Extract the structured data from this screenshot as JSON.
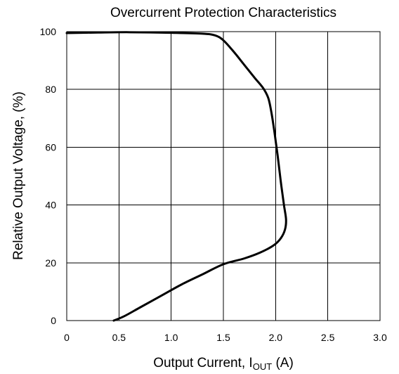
{
  "chart_data": {
    "type": "line",
    "title": "Overcurrent Protection Characteristics",
    "xlabel": {
      "main": "Output Current, I",
      "subscript": "OUT",
      "suffix": " (A)"
    },
    "ylabel": "Relative Output Voltage, (%)",
    "xlim": [
      0,
      3.0
    ],
    "ylim": [
      0,
      100
    ],
    "x_ticks": [
      "0",
      "0.5",
      "1.0",
      "1.5",
      "2.0",
      "2.5",
      "3.0"
    ],
    "x_tick_values": [
      0,
      0.5,
      1.0,
      1.5,
      2.0,
      2.5,
      3.0
    ],
    "y_ticks": [
      "0",
      "20",
      "40",
      "60",
      "80",
      "100"
    ],
    "y_tick_values": [
      0,
      20,
      40,
      60,
      80,
      100
    ],
    "x_grid_values": [
      0.5,
      1.0,
      1.5,
      2.0,
      2.5
    ],
    "y_grid_values": [
      20,
      40,
      60,
      80
    ],
    "grid": true,
    "legend": false,
    "series": [
      {
        "x": [
          0.0,
          0.3,
          0.6,
          1.0,
          1.3,
          1.42,
          1.5,
          1.6,
          1.7,
          1.8,
          1.88,
          1.93,
          1.96,
          1.99,
          2.02,
          2.05,
          2.08,
          2.1,
          2.09,
          2.05,
          1.98,
          1.85,
          1.7,
          1.5,
          1.3,
          1.1,
          0.9,
          0.7,
          0.55,
          0.45
        ],
        "y": [
          99.5,
          99.7,
          99.8,
          99.6,
          99.3,
          98.7,
          97.0,
          93.0,
          88.5,
          84.0,
          80.5,
          77.0,
          72.0,
          65.0,
          57.0,
          48.0,
          40.0,
          35.0,
          31.5,
          28.5,
          26.0,
          23.5,
          21.5,
          19.5,
          16.0,
          12.5,
          8.5,
          4.5,
          1.5,
          0.0
        ]
      }
    ],
    "colors": {
      "line": "#000000",
      "grid": "#000000",
      "background": "#ffffff"
    }
  }
}
